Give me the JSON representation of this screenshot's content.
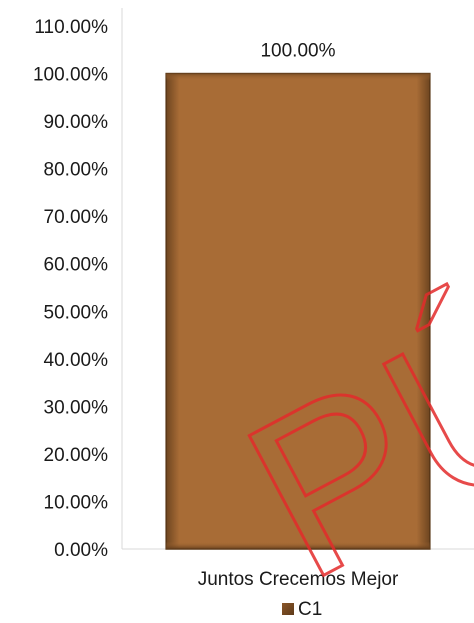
{
  "chart_data": {
    "type": "bar",
    "categories": [
      "Juntos Crecemos Mejor"
    ],
    "series": [
      {
        "name": "C1",
        "values": [
          100.0
        ],
        "color": "#a86c36"
      }
    ],
    "ylim": [
      0,
      110
    ],
    "yticks": [
      0,
      10,
      20,
      30,
      40,
      50,
      60,
      70,
      80,
      90,
      100,
      110
    ],
    "ytick_labels": [
      "0.00%",
      "10.00%",
      "20.00%",
      "30.00%",
      "40.00%",
      "50.00%",
      "60.00%",
      "70.00%",
      "80.00%",
      "90.00%",
      "100.00%",
      "110.00%"
    ],
    "data_labels": [
      "100.00%"
    ],
    "grid": false,
    "legend_position": "bottom",
    "title": "",
    "xlabel": "",
    "ylabel": ""
  },
  "watermark": {
    "text": "PÚ",
    "color": "#e32b2b"
  }
}
